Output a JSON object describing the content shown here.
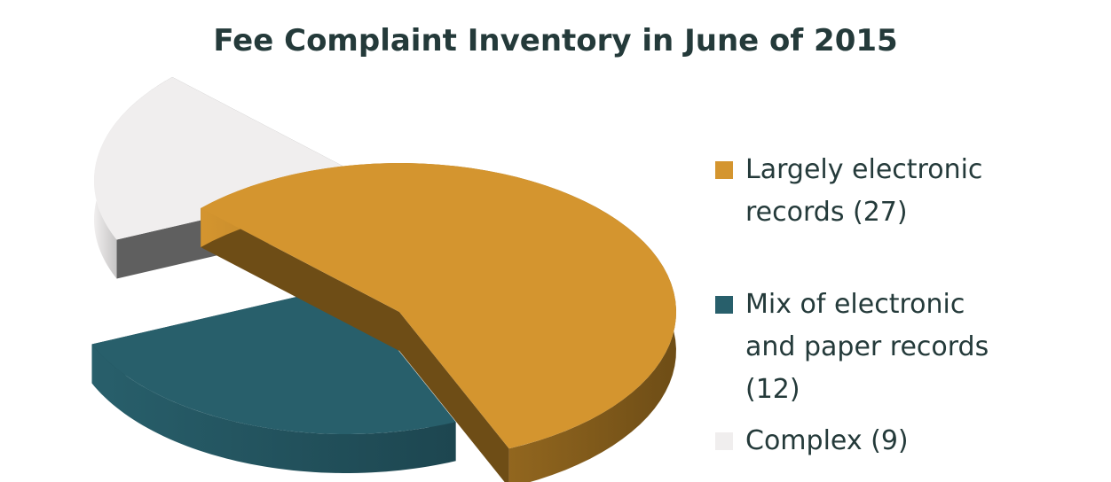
{
  "chart_data": {
    "type": "pie",
    "title": "Fee Complaint Inventory in June of 2015",
    "slices": [
      {
        "name": "Largely electronic",
        "name2": "records (27)",
        "value": 27,
        "color": "#d4952f",
        "side_color": "#6e4d16"
      },
      {
        "name": "Mix of electronic",
        "name2": "and paper records",
        "name3": "(12)",
        "value": 12,
        "color": "#285f6b",
        "side_color": "#1d4650"
      },
      {
        "name": "Complex (9)",
        "value": 9,
        "color": "#f0eeee",
        "side_color": "#5f5f5f"
      }
    ],
    "legend_position": "right",
    "exploded": true,
    "three_d": true
  }
}
